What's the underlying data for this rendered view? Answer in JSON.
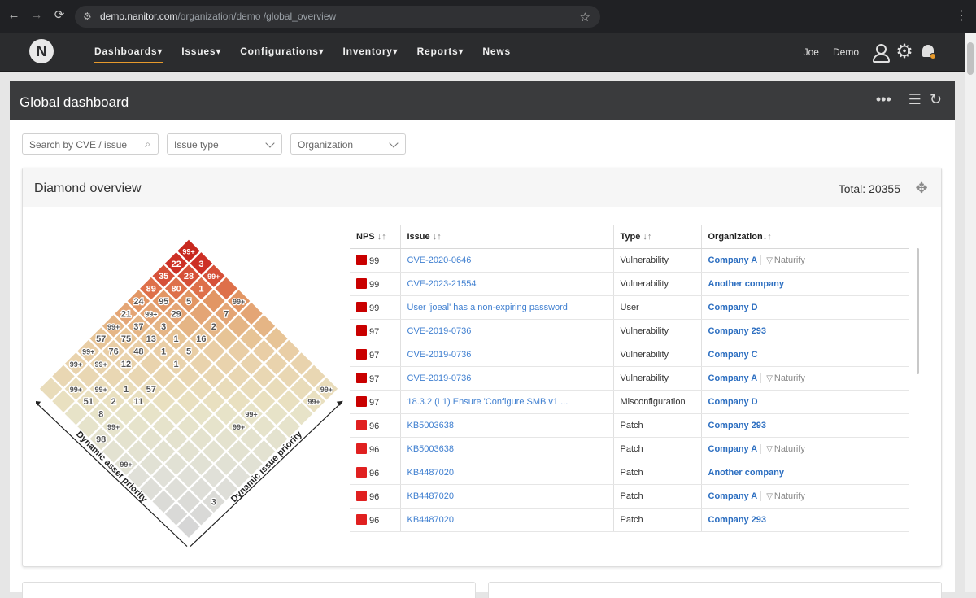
{
  "browser": {
    "url_host": "demo.nanitor.com",
    "url_path": "/organization/demo /global_overview"
  },
  "header": {
    "nav": [
      "Dashboards",
      "Issues",
      "Configurations",
      "Inventory",
      "Reports",
      "News"
    ],
    "dropdown_marker": "▾",
    "user": "Joe",
    "org": "Demo",
    "accent": "#e79a2c"
  },
  "dashboard": {
    "title": "Global dashboard"
  },
  "filters": {
    "search_placeholder": "Search by CVE / issue",
    "issue_type": "Issue type",
    "organization": "Organization"
  },
  "diamond_panel": {
    "title": "Diamond overview",
    "total": "Total: 20355",
    "axis_left": "Dynamic asset priority",
    "axis_right": "Dynamic issue priority",
    "cells": [
      {
        "r": 0,
        "c": 0,
        "v": "99+"
      },
      {
        "r": 0,
        "c": 1,
        "v": "3"
      },
      {
        "r": 1,
        "c": 0,
        "v": "22"
      },
      {
        "r": 0,
        "c": 2,
        "v": "99+"
      },
      {
        "r": 1,
        "c": 1,
        "v": "28"
      },
      {
        "r": 2,
        "c": 0,
        "v": "35"
      },
      {
        "r": 1,
        "c": 2,
        "v": "1"
      },
      {
        "r": 2,
        "c": 1,
        "v": "80"
      },
      {
        "r": 3,
        "c": 0,
        "v": "89"
      },
      {
        "r": 0,
        "c": 4,
        "v": "99+"
      },
      {
        "r": 2,
        "c": 2,
        "v": "5"
      },
      {
        "r": 3,
        "c": 1,
        "v": "95"
      },
      {
        "r": 4,
        "c": 0,
        "v": "24"
      },
      {
        "r": 1,
        "c": 4,
        "v": "7"
      },
      {
        "r": 3,
        "c": 2,
        "v": "29"
      },
      {
        "r": 4,
        "c": 1,
        "v": "99+"
      },
      {
        "r": 5,
        "c": 0,
        "v": "21"
      },
      {
        "r": 2,
        "c": 4,
        "v": "2"
      },
      {
        "r": 4,
        "c": 2,
        "v": "3"
      },
      {
        "r": 5,
        "c": 1,
        "v": "37"
      },
      {
        "r": 6,
        "c": 0,
        "v": "99+"
      },
      {
        "r": 3,
        "c": 4,
        "v": "16"
      },
      {
        "r": 4,
        "c": 3,
        "v": "1"
      },
      {
        "r": 5,
        "c": 2,
        "v": "13"
      },
      {
        "r": 6,
        "c": 1,
        "v": "75"
      },
      {
        "r": 7,
        "c": 0,
        "v": "57"
      },
      {
        "r": 4,
        "c": 4,
        "v": "5"
      },
      {
        "r": 5,
        "c": 3,
        "v": "1"
      },
      {
        "r": 6,
        "c": 2,
        "v": "48"
      },
      {
        "r": 7,
        "c": 1,
        "v": "76"
      },
      {
        "r": 8,
        "c": 0,
        "v": "99+"
      },
      {
        "r": 5,
        "c": 4,
        "v": "1"
      },
      {
        "r": 7,
        "c": 2,
        "v": "12"
      },
      {
        "r": 8,
        "c": 1,
        "v": "99+"
      },
      {
        "r": 9,
        "c": 0,
        "v": "99+"
      },
      {
        "r": 0,
        "c": 11,
        "v": "99+"
      },
      {
        "r": 7,
        "c": 4,
        "v": "57"
      },
      {
        "r": 8,
        "c": 3,
        "v": "1"
      },
      {
        "r": 9,
        "c": 2,
        "v": "99+"
      },
      {
        "r": 10,
        "c": 1,
        "v": "99+"
      },
      {
        "r": 1,
        "c": 11,
        "v": "99+"
      },
      {
        "r": 8,
        "c": 4,
        "v": "11"
      },
      {
        "r": 9,
        "c": 3,
        "v": "2"
      },
      {
        "r": 10,
        "c": 2,
        "v": "51"
      },
      {
        "r": 4,
        "c": 9,
        "v": "99+"
      },
      {
        "r": 10,
        "c": 3,
        "v": "8"
      },
      {
        "r": 5,
        "c": 9,
        "v": "99+"
      },
      {
        "r": 10,
        "c": 4,
        "v": "99+"
      },
      {
        "r": 11,
        "c": 4,
        "v": "98"
      },
      {
        "r": 11,
        "c": 6,
        "v": "99+"
      },
      {
        "r": 9,
        "c": 11,
        "v": "3"
      }
    ]
  },
  "table": {
    "headers": {
      "nps": "NPS",
      "issue": "Issue",
      "type": "Type",
      "org": "Organization",
      "sort": "↓↑"
    },
    "rows": [
      {
        "nps": "99",
        "color": "#c90000",
        "issue": "CVE-2020-0646",
        "type": "Vulnerability",
        "org": "Company A",
        "tag": "Naturify"
      },
      {
        "nps": "99",
        "color": "#c90000",
        "issue": "CVE-2023-21554",
        "type": "Vulnerability",
        "org": "Another company",
        "tag": ""
      },
      {
        "nps": "99",
        "color": "#c90000",
        "issue": "User 'joeal' has a non-expiring password",
        "type": "User",
        "org": "Company D",
        "tag": ""
      },
      {
        "nps": "97",
        "color": "#c90000",
        "issue": "CVE-2019-0736",
        "type": "Vulnerability",
        "org": "Company 293",
        "tag": ""
      },
      {
        "nps": "97",
        "color": "#c90000",
        "issue": "CVE-2019-0736",
        "type": "Vulnerability",
        "org": "Company C",
        "tag": ""
      },
      {
        "nps": "97",
        "color": "#c90000",
        "issue": "CVE-2019-0736",
        "type": "Vulnerability",
        "org": "Company A",
        "tag": "Naturify"
      },
      {
        "nps": "97",
        "color": "#c90000",
        "issue": "18.3.2 (L1) Ensure 'Configure SMB v1 ...",
        "type": "Misconfiguration",
        "org": "Company D",
        "tag": ""
      },
      {
        "nps": "96",
        "color": "#e02020",
        "issue": "KB5003638",
        "type": "Patch",
        "org": "Company 293",
        "tag": ""
      },
      {
        "nps": "96",
        "color": "#e02020",
        "issue": "KB5003638",
        "type": "Patch",
        "org": "Company A",
        "tag": "Naturify"
      },
      {
        "nps": "96",
        "color": "#e02020",
        "issue": "KB4487020",
        "type": "Patch",
        "org": "Another company",
        "tag": ""
      },
      {
        "nps": "96",
        "color": "#e02020",
        "issue": "KB4487020",
        "type": "Patch",
        "org": "Company A",
        "tag": "Naturify"
      },
      {
        "nps": "96",
        "color": "#e02020",
        "issue": "KB4487020",
        "type": "Patch",
        "org": "Company 293",
        "tag": ""
      }
    ]
  }
}
